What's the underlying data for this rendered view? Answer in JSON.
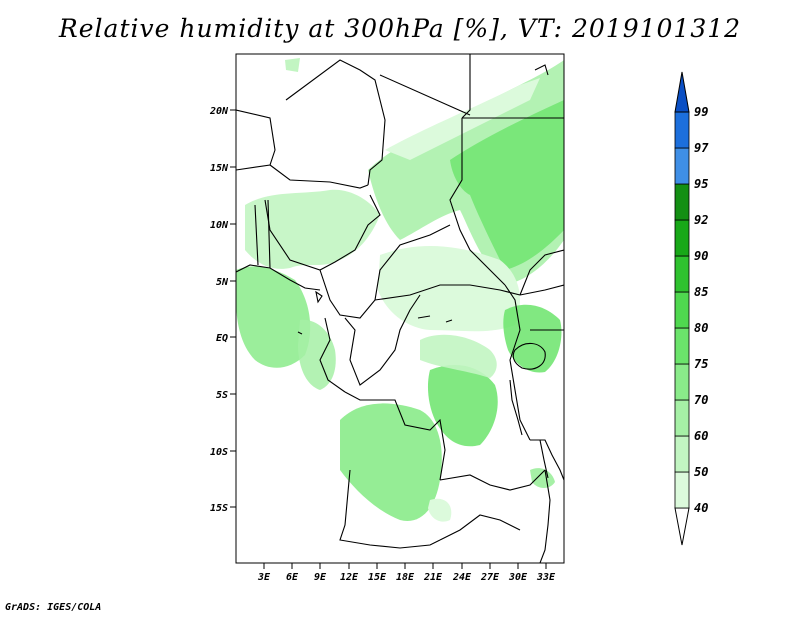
{
  "title": "Relative humidity at 300hPa [%], VT: 2019101312",
  "credit": "GrADS: IGES/COLA",
  "lat_labels": [
    "20N",
    "15N",
    "10N",
    "5N",
    "EQ",
    "5S",
    "10S",
    "15S"
  ],
  "lon_labels": [
    "3E",
    "6E",
    "9E",
    "12E",
    "15E",
    "18E",
    "21E",
    "24E",
    "27E",
    "30E",
    "33E"
  ],
  "colorbar": {
    "levels": [
      "40",
      "50",
      "60",
      "70",
      "75",
      "80",
      "85",
      "90",
      "92",
      "95",
      "97",
      "99"
    ],
    "colors": [
      "#f0fff0",
      "#dcfadc",
      "#c2f5c2",
      "#a6f0a6",
      "#8aeb8a",
      "#6be46b",
      "#4fd84f",
      "#2fc22f",
      "#18a818",
      "#138f13",
      "#3f8fe6",
      "#1c6fdc",
      "#0a4fc4"
    ]
  },
  "layers": {
    "humidity": "relative-humidity-fill",
    "borders": "country-borders-coastlines"
  }
}
